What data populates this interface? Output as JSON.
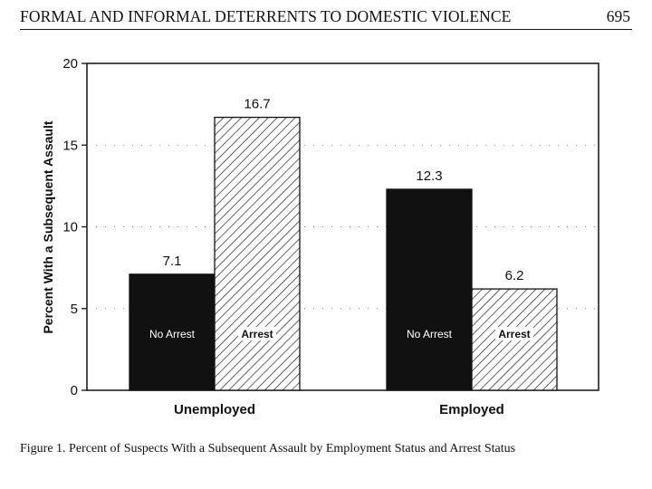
{
  "header": {
    "running_head": "FORMAL AND INFORMAL DETERRENTS TO DOMESTIC VIOLENCE",
    "page_number": "695"
  },
  "caption": "Figure 1.  Percent of Suspects With a Subsequent Assault by Employment Status and Arrest Status",
  "chart_data": {
    "type": "bar",
    "categories": [
      "Unemployed",
      "Employed"
    ],
    "series": [
      {
        "name": "No Arrest",
        "values": [
          7.1,
          12.3
        ],
        "fill": "#111111",
        "pattern": "solid"
      },
      {
        "name": "Arrest",
        "values": [
          16.7,
          6.2
        ],
        "fill": "#ffffff",
        "pattern": "hatch"
      }
    ],
    "value_labels": [
      [
        "7.1",
        "12.3"
      ],
      [
        "16.7",
        "6.2"
      ]
    ],
    "xlabel": "",
    "ylabel": "Percent With a Subsequent Assault",
    "ylim": [
      0,
      20
    ],
    "yticks": [
      0,
      5,
      10,
      15,
      20
    ],
    "grid": true,
    "legend": "none (series names printed inside bars)"
  }
}
